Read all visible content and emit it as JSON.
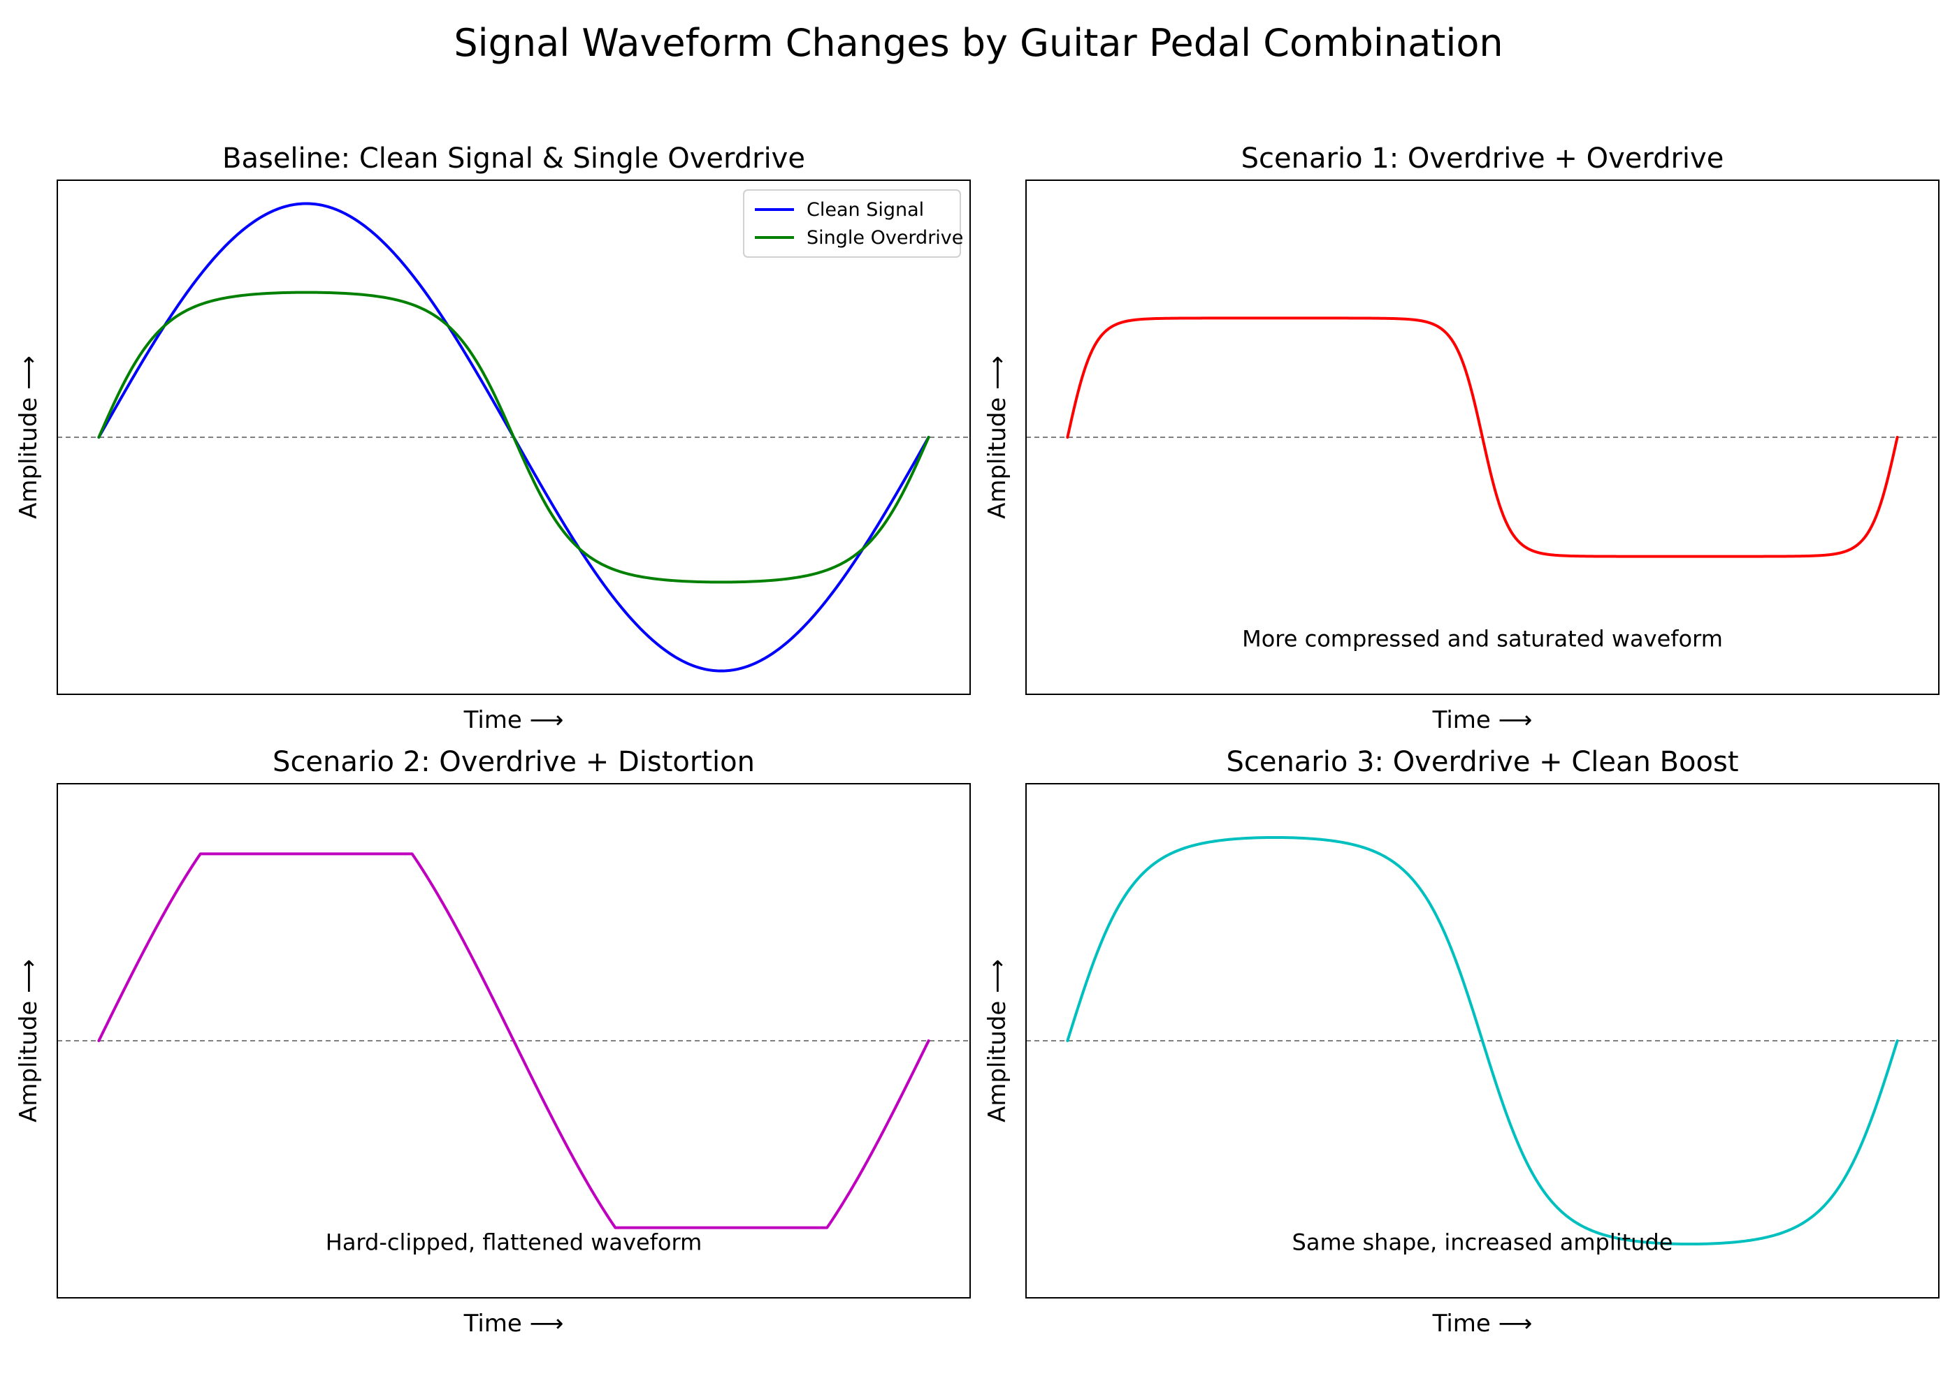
{
  "figure": {
    "title": "Signal Waveform Changes by Guitar Pedal Combination"
  },
  "chart_data": [
    {
      "type": "line",
      "title": "Baseline: Clean Signal & Single Overdrive",
      "xlabel": "Time ⟶",
      "ylabel": "Amplitude ⟶",
      "xlim": [
        -0.1,
        2.1
      ],
      "ylim": [
        -1.1,
        1.1
      ],
      "ticks_visible": false,
      "grid": false,
      "zero_line": {
        "y": 0,
        "style": "dashed",
        "color": "#808080"
      },
      "legend": {
        "placement": "upper right"
      },
      "annotation": "",
      "series": [
        {
          "name": "Clean Signal",
          "color": "#0000ff",
          "kind": "sine",
          "amplitude": 1.0,
          "x": [
            0,
            0.25,
            0.5,
            0.75,
            1.0,
            1.25,
            1.5,
            1.75,
            2.0
          ],
          "values": [
            0,
            0.707,
            1.0,
            0.707,
            0,
            -0.707,
            -1.0,
            -0.707,
            0
          ]
        },
        {
          "name": "Single Overdrive",
          "color": "#008000",
          "kind": "tanh",
          "drive": 2,
          "amplitude": 0.62,
          "x": [
            0,
            0.25,
            0.5,
            0.75,
            1.0,
            1.25,
            1.5,
            1.75,
            2.0
          ],
          "values": [
            0,
            0.55,
            0.62,
            0.55,
            0,
            -0.55,
            -0.62,
            -0.55,
            0
          ]
        }
      ]
    },
    {
      "type": "line",
      "title": "Scenario 1: Overdrive + Overdrive",
      "xlabel": "Time ⟶",
      "ylabel": "Amplitude ⟶",
      "xlim": [
        -0.1,
        2.1
      ],
      "ylim": [
        -1.1,
        1.1
      ],
      "ticks_visible": false,
      "grid": false,
      "zero_line": {
        "y": 0,
        "style": "dashed",
        "color": "#808080"
      },
      "annotation": "More compressed and saturated waveform",
      "annotation_at": {
        "x": 1.0,
        "y": -0.86
      },
      "series": [
        {
          "color": "#ff0000",
          "kind": "tanh",
          "drive": 5,
          "amplitude": 0.51,
          "x": [
            0,
            0.25,
            0.5,
            0.75,
            1.0,
            1.25,
            1.5,
            1.75,
            2.0
          ],
          "values": [
            0,
            0.5,
            0.51,
            0.5,
            0,
            -0.5,
            -0.51,
            -0.5,
            0
          ]
        }
      ]
    },
    {
      "type": "line",
      "title": "Scenario 2: Overdrive + Distortion",
      "xlabel": "Time ⟶",
      "ylabel": "Amplitude ⟶",
      "xlim": [
        -0.1,
        2.1
      ],
      "ylim": [
        -1.1,
        1.1
      ],
      "ticks_visible": false,
      "grid": false,
      "zero_line": {
        "y": 0,
        "style": "dashed",
        "color": "#808080"
      },
      "annotation": "Hard-clipped, flattened waveform",
      "annotation_at": {
        "x": 1.0,
        "y": -0.86
      },
      "series": [
        {
          "color": "#bf00bf",
          "kind": "clip",
          "amplitude": 1.15,
          "clip_level": 0.8,
          "x": [
            0,
            0.25,
            0.5,
            0.75,
            1.0,
            1.25,
            1.5,
            1.75,
            2.0
          ],
          "values": [
            0,
            0.8,
            0.8,
            0.8,
            0,
            -0.8,
            -0.8,
            -0.8,
            0
          ]
        }
      ]
    },
    {
      "type": "line",
      "title": "Scenario 3: Overdrive + Clean Boost",
      "xlabel": "Time ⟶",
      "ylabel": "Amplitude ⟶",
      "xlim": [
        -0.1,
        2.1
      ],
      "ylim": [
        -1.1,
        1.1
      ],
      "ticks_visible": false,
      "grid": false,
      "zero_line": {
        "y": 0,
        "style": "dashed",
        "color": "#808080"
      },
      "annotation": "Same shape, increased amplitude",
      "annotation_at": {
        "x": 1.0,
        "y": -0.86
      },
      "series": [
        {
          "color": "#00bfbf",
          "kind": "tanh",
          "drive": 2,
          "amplitude": 0.87,
          "x": [
            0,
            0.25,
            0.5,
            0.75,
            1.0,
            1.25,
            1.5,
            1.75,
            2.0
          ],
          "values": [
            0,
            0.77,
            0.87,
            0.77,
            0,
            -0.77,
            -0.87,
            -0.77,
            0
          ]
        }
      ]
    }
  ]
}
